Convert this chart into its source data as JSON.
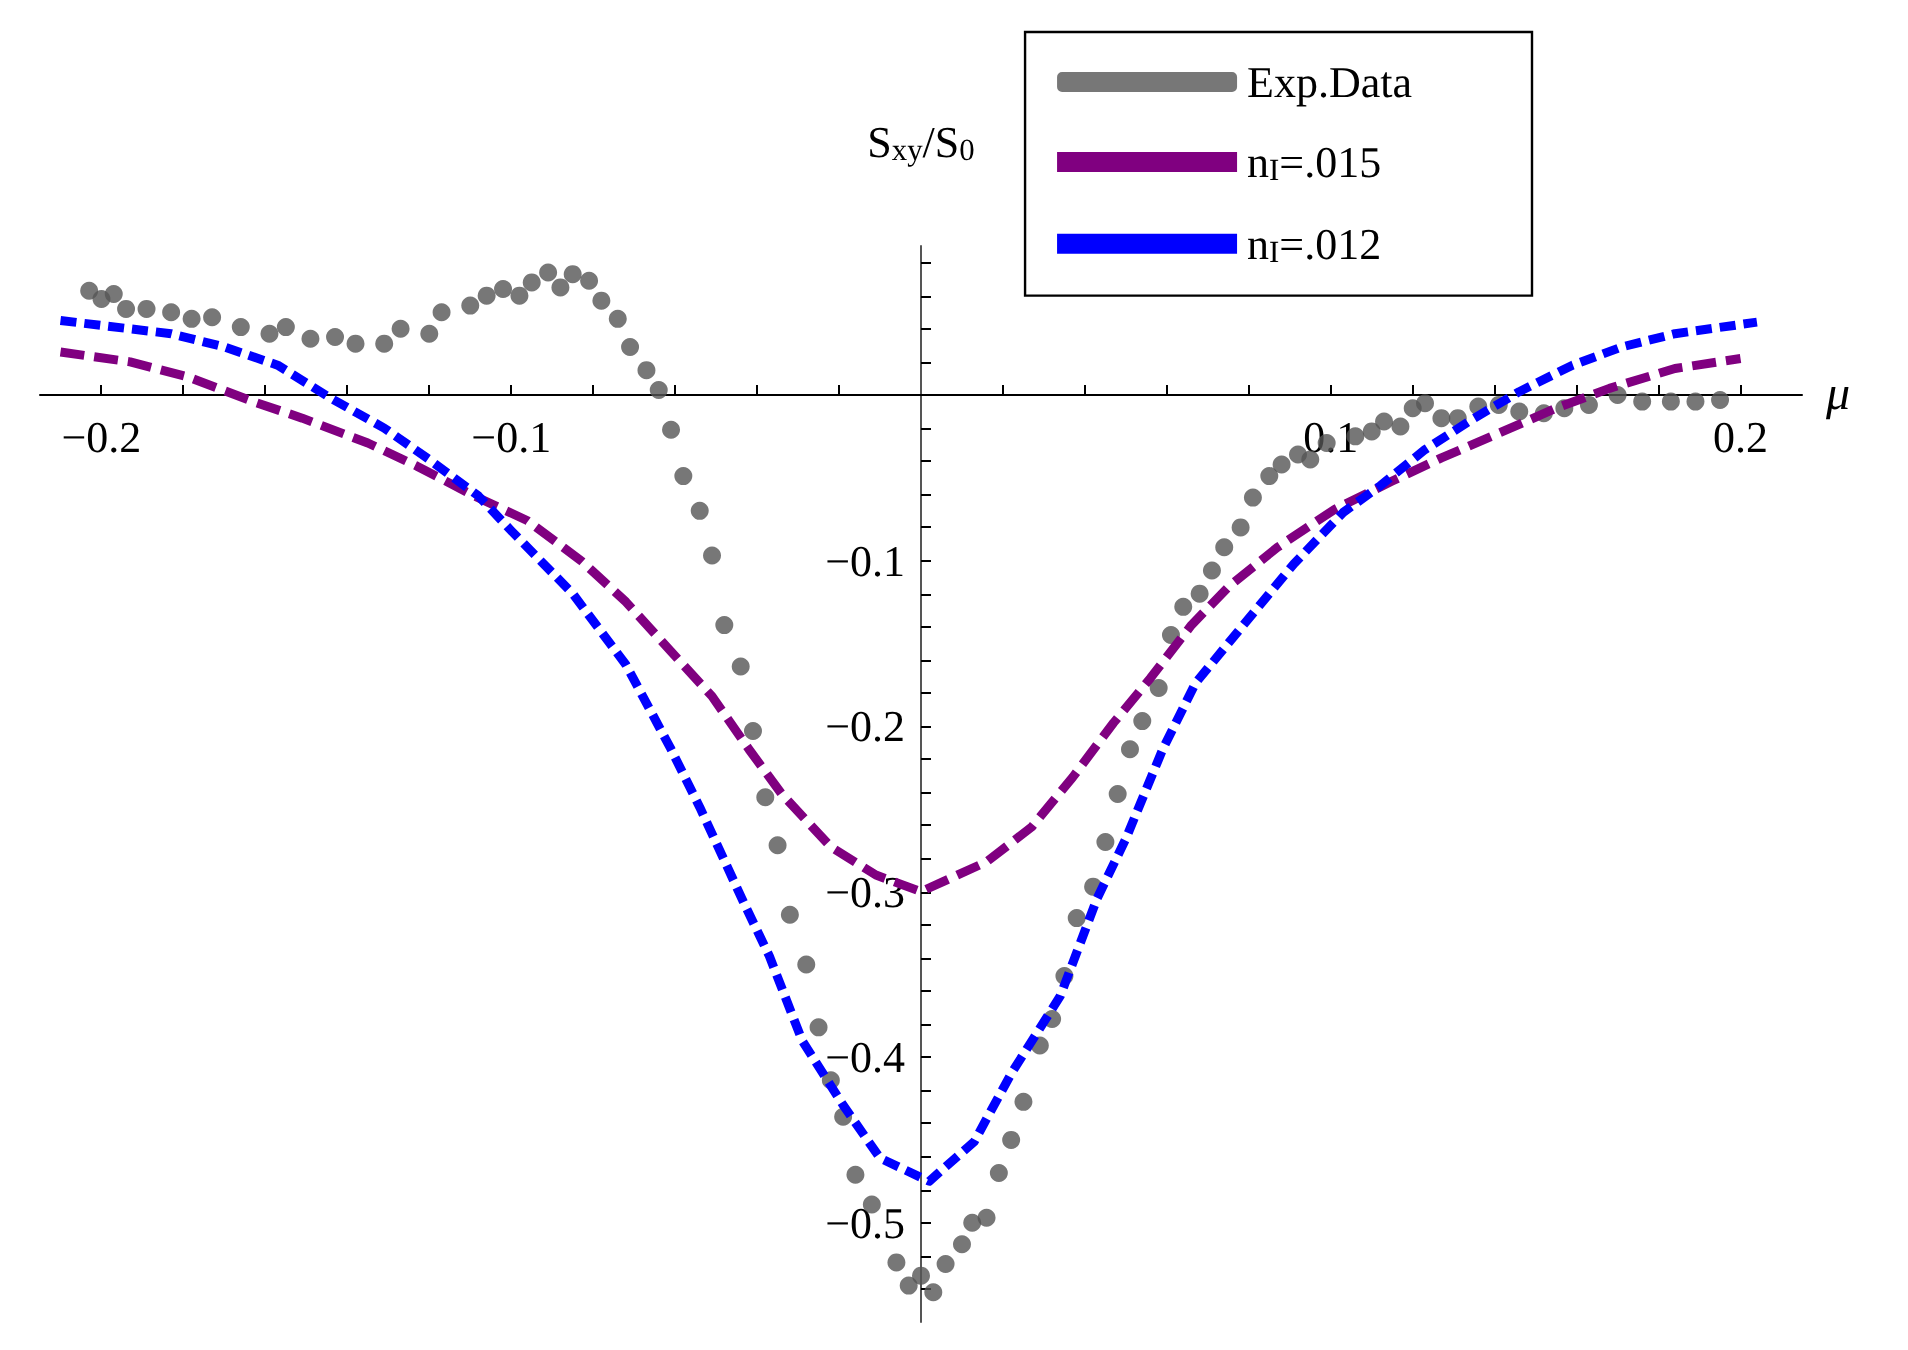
{
  "chart_data": {
    "type": "line",
    "ylabel": "S$_{xy}$/S$_{0}$",
    "xlabel": "μ",
    "xlim": [
      -0.215,
      0.215
    ],
    "ylim": [
      -0.56,
      0.09
    ],
    "xticks": [
      {
        "value": -0.2,
        "label": "−0.2"
      },
      {
        "value": -0.18,
        "label": null
      },
      {
        "value": -0.16,
        "label": null
      },
      {
        "value": -0.14,
        "label": null
      },
      {
        "value": -0.12,
        "label": null
      },
      {
        "value": -0.1,
        "label": "−0.1"
      },
      {
        "value": -0.08,
        "label": null
      },
      {
        "value": -0.06,
        "label": null
      },
      {
        "value": -0.04,
        "label": null
      },
      {
        "value": -0.02,
        "label": null
      },
      {
        "value": 0.02,
        "label": null
      },
      {
        "value": 0.04,
        "label": null
      },
      {
        "value": 0.06,
        "label": null
      },
      {
        "value": 0.08,
        "label": null
      },
      {
        "value": 0.1,
        "label": "0.1"
      },
      {
        "value": 0.12,
        "label": null
      },
      {
        "value": 0.14,
        "label": null
      },
      {
        "value": 0.16,
        "label": null
      },
      {
        "value": 0.18,
        "label": null
      },
      {
        "value": 0.2,
        "label": "0.2"
      }
    ],
    "yticks": [
      {
        "value": 0.08,
        "label": null
      },
      {
        "value": 0.06,
        "label": null
      },
      {
        "value": 0.04,
        "label": null
      },
      {
        "value": 0.02,
        "label": null
      },
      {
        "value": -0.02,
        "label": null
      },
      {
        "value": -0.04,
        "label": null
      },
      {
        "value": -0.06,
        "label": null
      },
      {
        "value": -0.08,
        "label": null
      },
      {
        "value": -0.1,
        "label": "−0.1"
      },
      {
        "value": -0.12,
        "label": null
      },
      {
        "value": -0.14,
        "label": null
      },
      {
        "value": -0.16,
        "label": null
      },
      {
        "value": -0.18,
        "label": null
      },
      {
        "value": -0.2,
        "label": "−0.2"
      },
      {
        "value": -0.22,
        "label": null
      },
      {
        "value": -0.24,
        "label": null
      },
      {
        "value": -0.26,
        "label": null
      },
      {
        "value": -0.28,
        "label": null
      },
      {
        "value": -0.3,
        "label": "−0.3"
      },
      {
        "value": -0.32,
        "label": null
      },
      {
        "value": -0.34,
        "label": null
      },
      {
        "value": -0.36,
        "label": null
      },
      {
        "value": -0.38,
        "label": null
      },
      {
        "value": -0.4,
        "label": "−0.4"
      },
      {
        "value": -0.42,
        "label": null
      },
      {
        "value": -0.44,
        "label": null
      },
      {
        "value": -0.46,
        "label": null
      },
      {
        "value": -0.48,
        "label": null
      },
      {
        "value": -0.5,
        "label": "−0.5"
      },
      {
        "value": -0.52,
        "label": null
      },
      {
        "value": -0.54,
        "label": null
      }
    ],
    "grid": false,
    "legend": "top right",
    "line_style": "dashed",
    "series": [
      {
        "name": "Exp.Data",
        "type": "scatter",
        "marker": "circle",
        "color": "#555555",
        "x": [
          -0.203,
          -0.2,
          -0.197,
          -0.194,
          -0.189,
          -0.183,
          -0.178,
          -0.173,
          -0.166,
          -0.159,
          -0.155,
          -0.149,
          -0.143,
          -0.138,
          -0.131,
          -0.127,
          -0.12,
          -0.117,
          -0.11,
          -0.106,
          -0.102,
          -0.098,
          -0.095,
          -0.091,
          -0.088,
          -0.085,
          -0.081,
          -0.078,
          -0.074,
          -0.071,
          -0.067,
          -0.064,
          -0.061,
          -0.058,
          -0.054,
          -0.051,
          -0.048,
          -0.044,
          -0.041,
          -0.038,
          -0.035,
          -0.032,
          -0.028,
          -0.025,
          -0.022,
          -0.019,
          -0.016,
          -0.012,
          -0.006,
          -0.003,
          0.0,
          0.003,
          0.006,
          0.01,
          0.0125,
          0.016,
          0.019,
          0.022,
          0.025,
          0.029,
          0.032,
          0.035,
          0.038,
          0.042,
          0.045,
          0.048,
          0.051,
          0.054,
          0.058,
          0.061,
          0.064,
          0.068,
          0.071,
          0.074,
          0.078,
          0.081,
          0.085,
          0.088,
          0.092,
          0.095,
          0.099,
          0.106,
          0.11,
          0.113,
          0.117,
          0.12,
          0.123,
          0.127,
          0.131,
          0.136,
          0.141,
          0.146,
          0.152,
          0.157,
          0.163,
          0.17,
          0.176,
          0.183,
          0.189,
          0.195
        ],
        "values": [
          0.063,
          0.058,
          0.061,
          0.052,
          0.052,
          0.05,
          0.046,
          0.047,
          0.041,
          0.037,
          0.041,
          0.034,
          0.035,
          0.031,
          0.031,
          0.04,
          0.037,
          0.05,
          0.054,
          0.06,
          0.064,
          0.06,
          0.068,
          0.074,
          0.065,
          0.073,
          0.069,
          0.057,
          0.046,
          0.029,
          0.015,
          0.003,
          -0.021,
          -0.049,
          -0.07,
          -0.097,
          -0.139,
          -0.164,
          -0.203,
          -0.243,
          -0.272,
          -0.314,
          -0.344,
          -0.382,
          -0.414,
          -0.436,
          -0.471,
          -0.489,
          -0.524,
          -0.538,
          -0.532,
          -0.542,
          -0.525,
          -0.513,
          -0.5,
          -0.497,
          -0.47,
          -0.45,
          -0.427,
          -0.393,
          -0.377,
          -0.351,
          -0.316,
          -0.297,
          -0.27,
          -0.241,
          -0.214,
          -0.197,
          -0.177,
          -0.145,
          -0.128,
          -0.12,
          -0.106,
          -0.092,
          -0.08,
          -0.062,
          -0.049,
          -0.042,
          -0.036,
          -0.039,
          -0.029,
          -0.025,
          -0.022,
          -0.016,
          -0.019,
          -0.008,
          -0.005,
          -0.014,
          -0.014,
          -0.007,
          -0.006,
          -0.01,
          -0.011,
          -0.008,
          -0.006,
          0.0,
          -0.004,
          -0.004,
          -0.004,
          -0.003
        ]
      },
      {
        "name": "n$_{I}$=.015",
        "marker": "none",
        "color": "#800080",
        "x": [
          -0.21,
          -0.193,
          -0.179,
          -0.163,
          -0.151,
          -0.135,
          -0.123,
          -0.109,
          -0.096,
          -0.083,
          -0.072,
          -0.061,
          -0.051,
          -0.042,
          -0.034,
          -0.022,
          -0.011,
          0.0,
          0.016,
          0.027,
          0.037,
          0.047,
          0.056,
          0.066,
          0.075,
          0.087,
          0.101,
          0.115,
          0.127,
          0.142,
          0.155,
          0.168,
          0.184,
          0.2
        ],
        "values": [
          0.026,
          0.02,
          0.011,
          -0.004,
          -0.014,
          -0.029,
          -0.043,
          -0.061,
          -0.076,
          -0.1,
          -0.125,
          -0.155,
          -0.182,
          -0.214,
          -0.241,
          -0.273,
          -0.29,
          -0.3,
          -0.282,
          -0.261,
          -0.231,
          -0.198,
          -0.171,
          -0.139,
          -0.116,
          -0.092,
          -0.069,
          -0.052,
          -0.038,
          -0.022,
          -0.008,
          0.004,
          0.016,
          0.022
        ]
      },
      {
        "name": "n$_{I}$=.012",
        "marker": "none",
        "color": "#0000ff",
        "x": [
          -0.21,
          -0.183,
          -0.17,
          -0.157,
          -0.144,
          -0.131,
          -0.12,
          -0.108,
          -0.1,
          -0.085,
          -0.072,
          -0.061,
          -0.054,
          -0.043,
          -0.037,
          -0.029,
          -0.019,
          -0.01,
          0.002,
          0.013,
          0.022,
          0.034,
          0.043,
          0.05,
          0.059,
          0.067,
          0.091,
          0.103,
          0.112,
          0.123,
          0.135,
          0.146,
          0.159,
          0.171,
          0.184,
          0.204
        ],
        "values": [
          0.045,
          0.037,
          0.029,
          0.018,
          -0.002,
          -0.02,
          -0.039,
          -0.061,
          -0.082,
          -0.12,
          -0.163,
          -0.214,
          -0.249,
          -0.308,
          -0.339,
          -0.39,
          -0.429,
          -0.461,
          -0.475,
          -0.451,
          -0.41,
          -0.363,
          -0.304,
          -0.268,
          -0.214,
          -0.174,
          -0.102,
          -0.071,
          -0.055,
          -0.033,
          -0.014,
          0.002,
          0.018,
          0.029,
          0.037,
          0.044
        ]
      }
    ]
  }
}
